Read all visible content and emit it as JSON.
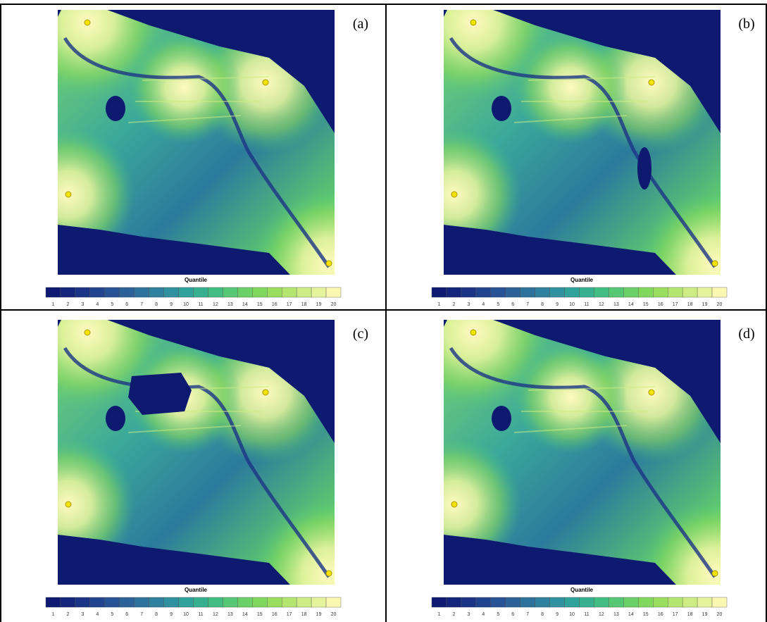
{
  "panels": [
    {
      "label": "(a)"
    },
    {
      "label": "(b)"
    },
    {
      "label": "(c)"
    },
    {
      "label": "(d)"
    }
  ],
  "legend": {
    "title": "Quantile",
    "classes": [
      1,
      2,
      3,
      4,
      5,
      6,
      7,
      8,
      9,
      10,
      11,
      12,
      13,
      14,
      15,
      16,
      17,
      18,
      19,
      20
    ],
    "colors": [
      "#0c1a72",
      "#13267c",
      "#1b3486",
      "#22438e",
      "#285294",
      "#2c6298",
      "#2e729b",
      "#2f829e",
      "#2f929e",
      "#31a29a",
      "#38b090",
      "#44bd84",
      "#55c775",
      "#6ad067",
      "#82d85e",
      "#9ade60",
      "#b4e56e",
      "#cdec84",
      "#e4f39c",
      "#fbf8b2"
    ]
  }
}
